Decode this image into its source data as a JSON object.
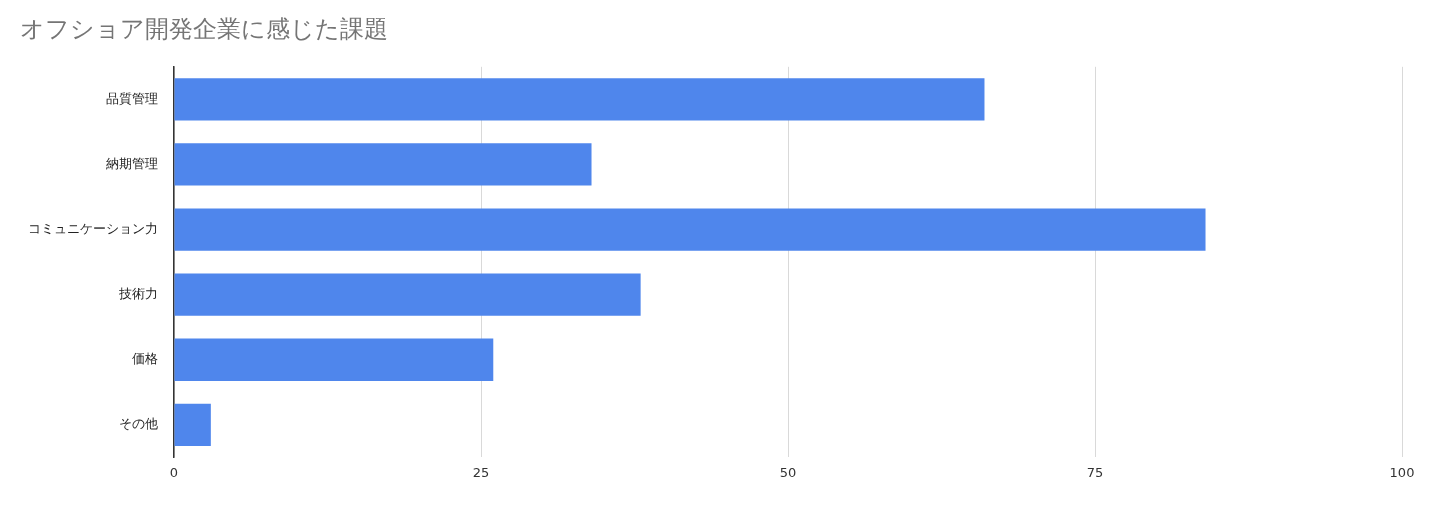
{
  "chart_data": {
    "type": "bar",
    "orientation": "horizontal",
    "title": "オフショア開発企業に感じた課題",
    "categories": [
      "品質管理",
      "納期管理",
      "コミュニケーション力",
      "技術力",
      "価格",
      "その他"
    ],
    "values": [
      66,
      34,
      84,
      38,
      26,
      3
    ],
    "color": "#4f86ec",
    "xlim": [
      0,
      100
    ],
    "xticks": [
      0,
      25,
      50,
      75,
      100
    ],
    "grid": "x",
    "legend": false
  }
}
